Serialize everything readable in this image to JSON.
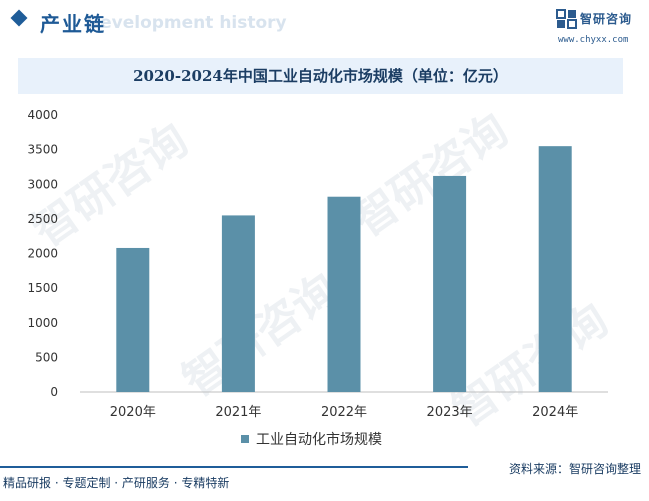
{
  "header": {
    "section_title": "产业链",
    "ghost_text": "Development history",
    "logo_name": "智研咨询",
    "logo_url": "www.chyxx.com"
  },
  "watermark_text": "智研咨询",
  "colors": {
    "bar": "#5b90a8",
    "accent": "#1f5d99",
    "title_bg": "#e8f1fb",
    "text": "#333333"
  },
  "chart_data": {
    "type": "bar",
    "title": "2020-2024年中国工业自动化市场规模（单位：亿元）",
    "categories": [
      "2020年",
      "2021年",
      "2022年",
      "2023年",
      "2024年"
    ],
    "series": [
      {
        "name": "工业自动化市场规模",
        "values": [
          2080,
          2550,
          2820,
          3120,
          3550
        ]
      }
    ],
    "ylim": [
      0,
      4000
    ],
    "yticks": [
      0,
      500,
      1000,
      1500,
      2000,
      2500,
      3000,
      3500,
      4000
    ],
    "xlabel": "",
    "ylabel": "",
    "legend": "bottom-center",
    "grid": false
  },
  "footer": {
    "left": "精品研报 · 专题定制 · 产研服务 · 专精特新",
    "right": "资料来源：智研咨询整理"
  }
}
